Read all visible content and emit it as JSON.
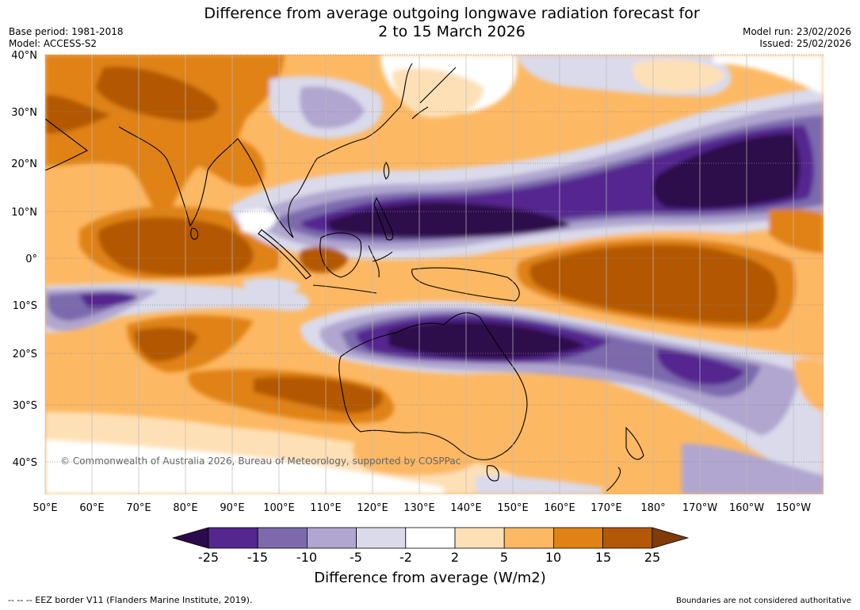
{
  "title": {
    "line1": "Difference from average outgoing longwave radiation forecast for",
    "line2": "2 to 15 March 2026"
  },
  "meta": {
    "base_period": "Base period: 1981-2018",
    "model": "Model: ACCESS-S2",
    "model_run": "Model run: 23/02/2026",
    "issued": "Issued: 25/02/2026"
  },
  "map": {
    "lon_labels": [
      "50°E",
      "60°E",
      "70°E",
      "80°E",
      "90°E",
      "100°E",
      "110°E",
      "120°E",
      "130°E",
      "140°E",
      "150°E",
      "160°E",
      "170°E",
      "180°",
      "170°W",
      "160°W",
      "150°W"
    ],
    "lat_labels": [
      "40°N",
      "30°N",
      "20°N",
      "10°N",
      "0°",
      "10°S",
      "20°S",
      "30°S",
      "40°S"
    ],
    "copyright": "© Commonwealth of Australia 2026, Bureau of Meteorology, supported by COSPPac"
  },
  "colorbar": {
    "labels": [
      "-25",
      "-15",
      "-10",
      "-5",
      "-2",
      "2",
      "5",
      "10",
      "15",
      "25"
    ],
    "colors": [
      "#2d0a4b",
      "#54278f",
      "#7c6aad",
      "#b0a6d0",
      "#dadaeb",
      "#ffffff",
      "#fee0b6",
      "#fdb863",
      "#e08214",
      "#b35806",
      "#7f3b08"
    ],
    "title": "Difference from average (W/m2)"
  },
  "footer": {
    "eez_note": "--  --  -- EEZ border V11 (Flanders Marine Institute, 2019).",
    "boundaries_note": "Boundaries are not considered authoritative"
  }
}
